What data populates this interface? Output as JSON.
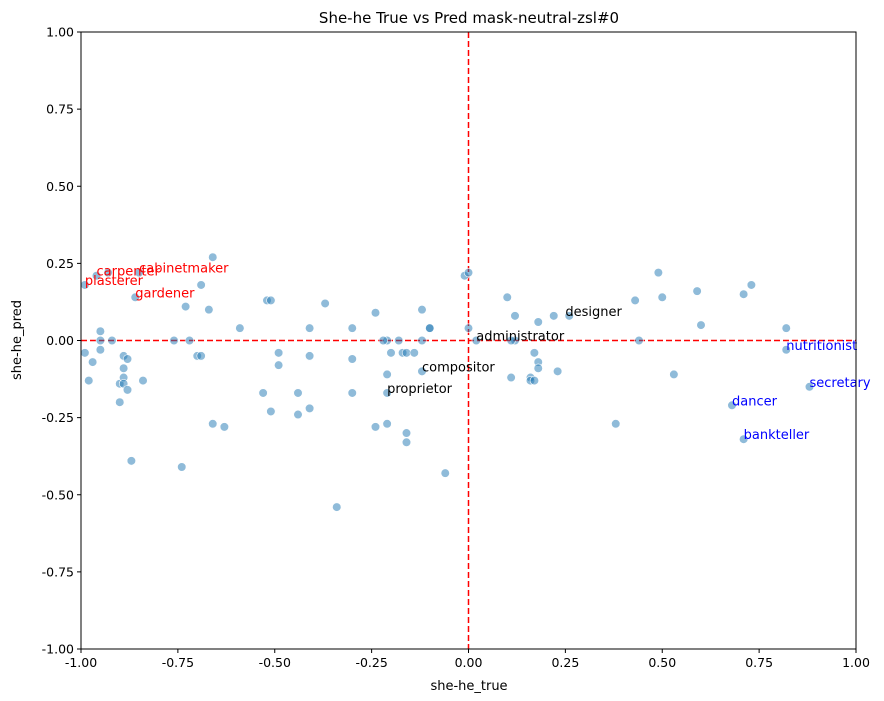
{
  "chart_data": {
    "type": "scatter",
    "title": "She-he True vs Pred mask-neutral-zsl#0",
    "xlabel": "she-he_true",
    "ylabel": "she-he_pred",
    "xlim": [
      -1.0,
      1.0
    ],
    "ylim": [
      -1.0,
      1.0
    ],
    "xticks": [
      "-1.00",
      "-0.75",
      "-0.50",
      "-0.25",
      "0.00",
      "0.25",
      "0.50",
      "0.75",
      "1.00"
    ],
    "yticks": [
      "-1.00",
      "-0.75",
      "-0.50",
      "-0.25",
      "0.00",
      "0.25",
      "0.50",
      "0.75",
      "1.00"
    ],
    "grid": false,
    "point_color": "#1f77b4",
    "reference_line_color": "#ff0000",
    "reference_lines": {
      "x": 0.0,
      "y": 0.0,
      "style": "dashed"
    },
    "points": [
      [
        -0.99,
        0.18
      ],
      [
        -0.96,
        0.21
      ],
      [
        -0.93,
        0.22
      ],
      [
        -0.86,
        0.14
      ],
      [
        -0.85,
        0.22
      ],
      [
        -0.73,
        0.11
      ],
      [
        -0.69,
        0.18
      ],
      [
        -0.66,
        0.27
      ],
      [
        -0.67,
        0.1
      ],
      [
        -0.59,
        0.04
      ],
      [
        -0.52,
        0.13
      ],
      [
        -0.51,
        0.13
      ],
      [
        -0.41,
        0.04
      ],
      [
        -0.37,
        0.12
      ],
      [
        -0.3,
        0.04
      ],
      [
        -0.24,
        0.09
      ],
      [
        -0.21,
        0.0
      ],
      [
        -0.22,
        0.0
      ],
      [
        -0.18,
        0.0
      ],
      [
        -0.17,
        -0.04
      ],
      [
        -0.12,
        0.1
      ],
      [
        -0.12,
        0.0
      ],
      [
        -0.1,
        0.04
      ],
      [
        -0.1,
        0.04
      ],
      [
        -0.01,
        0.21
      ],
      [
        0.0,
        0.22
      ],
      [
        0.0,
        0.04
      ],
      [
        0.02,
        0.0
      ],
      [
        0.1,
        0.14
      ],
      [
        0.12,
        0.08
      ],
      [
        0.12,
        0.0
      ],
      [
        0.11,
        0.0
      ],
      [
        0.18,
        0.06
      ],
      [
        0.22,
        0.08
      ],
      [
        0.26,
        0.08
      ],
      [
        0.49,
        0.22
      ],
      [
        0.5,
        0.14
      ],
      [
        0.43,
        0.13
      ],
      [
        0.59,
        0.16
      ],
      [
        0.6,
        0.05
      ],
      [
        0.71,
        0.15
      ],
      [
        0.73,
        0.18
      ],
      [
        0.82,
        0.04
      ],
      [
        0.44,
        0.0
      ],
      [
        0.53,
        -0.11
      ],
      [
        -0.99,
        -0.04
      ],
      [
        -0.98,
        -0.13
      ],
      [
        -0.97,
        -0.07
      ],
      [
        -0.95,
        -0.03
      ],
      [
        -0.95,
        0.03
      ],
      [
        -0.95,
        0.0
      ],
      [
        -0.92,
        0.0
      ],
      [
        -0.9,
        -0.14
      ],
      [
        -0.89,
        -0.12
      ],
      [
        -0.89,
        -0.05
      ],
      [
        -0.88,
        -0.06
      ],
      [
        -0.89,
        -0.09
      ],
      [
        -0.89,
        -0.14
      ],
      [
        -0.88,
        -0.16
      ],
      [
        -0.9,
        -0.2
      ],
      [
        -0.84,
        -0.13
      ],
      [
        -0.76,
        0.0
      ],
      [
        -0.72,
        0.0
      ],
      [
        -0.7,
        -0.05
      ],
      [
        -0.69,
        -0.05
      ],
      [
        -0.66,
        -0.27
      ],
      [
        -0.63,
        -0.28
      ],
      [
        -0.53,
        -0.17
      ],
      [
        -0.51,
        -0.23
      ],
      [
        -0.49,
        -0.04
      ],
      [
        -0.49,
        -0.08
      ],
      [
        -0.44,
        -0.17
      ],
      [
        -0.44,
        -0.24
      ],
      [
        -0.41,
        -0.22
      ],
      [
        -0.41,
        -0.05
      ],
      [
        -0.3,
        -0.06
      ],
      [
        -0.3,
        -0.17
      ],
      [
        -0.34,
        -0.54
      ],
      [
        -0.24,
        -0.28
      ],
      [
        -0.21,
        -0.27
      ],
      [
        -0.2,
        -0.04
      ],
      [
        -0.21,
        -0.11
      ],
      [
        -0.21,
        -0.17
      ],
      [
        -0.16,
        -0.3
      ],
      [
        -0.16,
        -0.33
      ],
      [
        -0.16,
        -0.04
      ],
      [
        -0.14,
        -0.04
      ],
      [
        -0.12,
        -0.1
      ],
      [
        -0.06,
        -0.43
      ],
      [
        -0.87,
        -0.39
      ],
      [
        -0.74,
        -0.41
      ],
      [
        0.11,
        -0.12
      ],
      [
        0.16,
        -0.12
      ],
      [
        0.16,
        -0.13
      ],
      [
        0.17,
        -0.04
      ],
      [
        0.17,
        -0.13
      ],
      [
        0.18,
        -0.07
      ],
      [
        0.18,
        -0.09
      ],
      [
        0.23,
        -0.1
      ],
      [
        0.38,
        -0.27
      ],
      [
        0.68,
        -0.21
      ],
      [
        0.71,
        -0.32
      ],
      [
        0.82,
        -0.03
      ],
      [
        0.88,
        -0.15
      ]
    ],
    "annotations": [
      {
        "text": "carpenter",
        "x": -0.96,
        "y": 0.21,
        "color": "#ff0000"
      },
      {
        "text": "cabinetmaker",
        "x": -0.85,
        "y": 0.22,
        "color": "#ff0000"
      },
      {
        "text": "plasterer",
        "x": -0.99,
        "y": 0.18,
        "color": "#ff0000"
      },
      {
        "text": "gardener",
        "x": -0.86,
        "y": 0.14,
        "color": "#ff0000"
      },
      {
        "text": "designer",
        "x": 0.25,
        "y": 0.08,
        "color": "#000000"
      },
      {
        "text": "administrator",
        "x": 0.02,
        "y": 0.0,
        "color": "#000000"
      },
      {
        "text": "compositor",
        "x": -0.12,
        "y": -0.1,
        "color": "#000000"
      },
      {
        "text": "proprietor",
        "x": -0.21,
        "y": -0.17,
        "color": "#000000"
      },
      {
        "text": "nutritionist",
        "x": 0.82,
        "y": -0.03,
        "color": "#0000ff"
      },
      {
        "text": "secretary",
        "x": 0.88,
        "y": -0.15,
        "color": "#0000ff"
      },
      {
        "text": "dancer",
        "x": 0.68,
        "y": -0.21,
        "color": "#0000ff"
      },
      {
        "text": "bankteller",
        "x": 0.71,
        "y": -0.32,
        "color": "#0000ff"
      }
    ]
  }
}
